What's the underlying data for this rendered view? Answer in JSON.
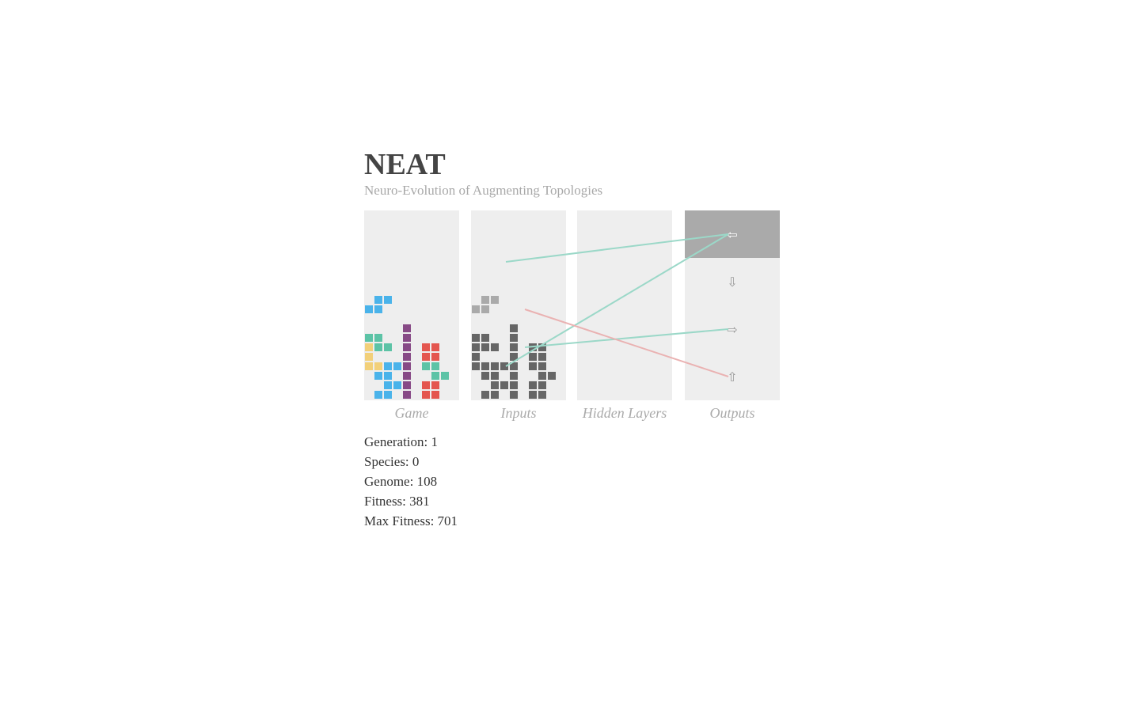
{
  "header": {
    "title": "NEAT",
    "subtitle": "Neuro-Evolution of Augmenting Topologies"
  },
  "panel_labels": {
    "game": "Game",
    "inputs": "Inputs",
    "hidden": "Hidden Layers",
    "outputs": "Outputs"
  },
  "outputs": [
    {
      "name": "left",
      "glyph": "⇦",
      "active": true
    },
    {
      "name": "down",
      "glyph": "⇩",
      "active": false
    },
    {
      "name": "right",
      "glyph": "⇨",
      "active": false
    },
    {
      "name": "rotate",
      "glyph": "⇧",
      "active": false
    }
  ],
  "colors": {
    "blue": "#4ab3ea",
    "green": "#5cc3a6",
    "yellow": "#f2d07a",
    "purple": "#874a86",
    "red": "#e4564f",
    "input_block": "#666666",
    "input_piece": "#aaaaaa",
    "link_positive": "#9bd8c8",
    "link_negative": "#eab2b2"
  },
  "game_board": {
    "columns": 10,
    "rows": 20,
    "falling_piece": [
      {
        "col": 1,
        "row": 9,
        "color": "blue"
      },
      {
        "col": 2,
        "row": 9,
        "color": "blue"
      },
      {
        "col": 0,
        "row": 10,
        "color": "blue"
      },
      {
        "col": 1,
        "row": 10,
        "color": "blue"
      }
    ],
    "locked_cells": [
      {
        "col": 4,
        "row": 12,
        "color": "purple"
      },
      {
        "col": 0,
        "row": 13,
        "color": "green"
      },
      {
        "col": 1,
        "row": 13,
        "color": "green"
      },
      {
        "col": 4,
        "row": 13,
        "color": "purple"
      },
      {
        "col": 0,
        "row": 14,
        "color": "yellow"
      },
      {
        "col": 1,
        "row": 14,
        "color": "green"
      },
      {
        "col": 2,
        "row": 14,
        "color": "green"
      },
      {
        "col": 4,
        "row": 14,
        "color": "purple"
      },
      {
        "col": 6,
        "row": 14,
        "color": "red"
      },
      {
        "col": 7,
        "row": 14,
        "color": "red"
      },
      {
        "col": 0,
        "row": 15,
        "color": "yellow"
      },
      {
        "col": 4,
        "row": 15,
        "color": "purple"
      },
      {
        "col": 6,
        "row": 15,
        "color": "red"
      },
      {
        "col": 7,
        "row": 15,
        "color": "red"
      },
      {
        "col": 0,
        "row": 16,
        "color": "yellow"
      },
      {
        "col": 1,
        "row": 16,
        "color": "yellow"
      },
      {
        "col": 2,
        "row": 16,
        "color": "blue"
      },
      {
        "col": 3,
        "row": 16,
        "color": "blue"
      },
      {
        "col": 4,
        "row": 16,
        "color": "purple"
      },
      {
        "col": 6,
        "row": 16,
        "color": "green"
      },
      {
        "col": 7,
        "row": 16,
        "color": "green"
      },
      {
        "col": 1,
        "row": 17,
        "color": "blue"
      },
      {
        "col": 2,
        "row": 17,
        "color": "blue"
      },
      {
        "col": 4,
        "row": 17,
        "color": "purple"
      },
      {
        "col": 7,
        "row": 17,
        "color": "green"
      },
      {
        "col": 8,
        "row": 17,
        "color": "green"
      },
      {
        "col": 2,
        "row": 18,
        "color": "blue"
      },
      {
        "col": 3,
        "row": 18,
        "color": "blue"
      },
      {
        "col": 4,
        "row": 18,
        "color": "purple"
      },
      {
        "col": 6,
        "row": 18,
        "color": "red"
      },
      {
        "col": 7,
        "row": 18,
        "color": "red"
      },
      {
        "col": 1,
        "row": 19,
        "color": "blue"
      },
      {
        "col": 2,
        "row": 19,
        "color": "blue"
      },
      {
        "col": 4,
        "row": 19,
        "color": "purple"
      },
      {
        "col": 6,
        "row": 19,
        "color": "red"
      },
      {
        "col": 7,
        "row": 19,
        "color": "red"
      }
    ]
  },
  "input_grid": {
    "columns": 10,
    "rows": 20,
    "piece_cells": [
      {
        "col": 1,
        "row": 9
      },
      {
        "col": 2,
        "row": 9
      },
      {
        "col": 0,
        "row": 10
      },
      {
        "col": 1,
        "row": 10
      }
    ],
    "block_cells": [
      {
        "col": 4,
        "row": 12
      },
      {
        "col": 0,
        "row": 13
      },
      {
        "col": 1,
        "row": 13
      },
      {
        "col": 4,
        "row": 13
      },
      {
        "col": 0,
        "row": 14
      },
      {
        "col": 1,
        "row": 14
      },
      {
        "col": 2,
        "row": 14
      },
      {
        "col": 4,
        "row": 14
      },
      {
        "col": 6,
        "row": 14
      },
      {
        "col": 7,
        "row": 14
      },
      {
        "col": 0,
        "row": 15
      },
      {
        "col": 4,
        "row": 15
      },
      {
        "col": 6,
        "row": 15
      },
      {
        "col": 7,
        "row": 15
      },
      {
        "col": 0,
        "row": 16
      },
      {
        "col": 1,
        "row": 16
      },
      {
        "col": 2,
        "row": 16
      },
      {
        "col": 3,
        "row": 16
      },
      {
        "col": 4,
        "row": 16
      },
      {
        "col": 6,
        "row": 16
      },
      {
        "col": 7,
        "row": 16
      },
      {
        "col": 1,
        "row": 17
      },
      {
        "col": 2,
        "row": 17
      },
      {
        "col": 4,
        "row": 17
      },
      {
        "col": 7,
        "row": 17
      },
      {
        "col": 8,
        "row": 17
      },
      {
        "col": 2,
        "row": 18
      },
      {
        "col": 3,
        "row": 18
      },
      {
        "col": 4,
        "row": 18
      },
      {
        "col": 6,
        "row": 18
      },
      {
        "col": 7,
        "row": 18
      },
      {
        "col": 1,
        "row": 19
      },
      {
        "col": 2,
        "row": 19
      },
      {
        "col": 4,
        "row": 19
      },
      {
        "col": 6,
        "row": 19
      },
      {
        "col": 7,
        "row": 19
      }
    ]
  },
  "links": [
    {
      "from": {
        "col": 3,
        "row": 5
      },
      "to_output": 0,
      "sign": "positive"
    },
    {
      "from": {
        "col": 3,
        "row": 16
      },
      "to_output": 0,
      "sign": "positive"
    },
    {
      "from": {
        "col": 5,
        "row": 14
      },
      "to_output": 2,
      "sign": "positive"
    },
    {
      "from": {
        "col": 5,
        "row": 10
      },
      "to_output": 3,
      "sign": "negative"
    }
  ],
  "stats": {
    "generation": "Generation: 1",
    "species": "Species: 0",
    "genome": "Genome: 108",
    "fitness": "Fitness: 381",
    "max_fitness": "Max Fitness: 701"
  }
}
